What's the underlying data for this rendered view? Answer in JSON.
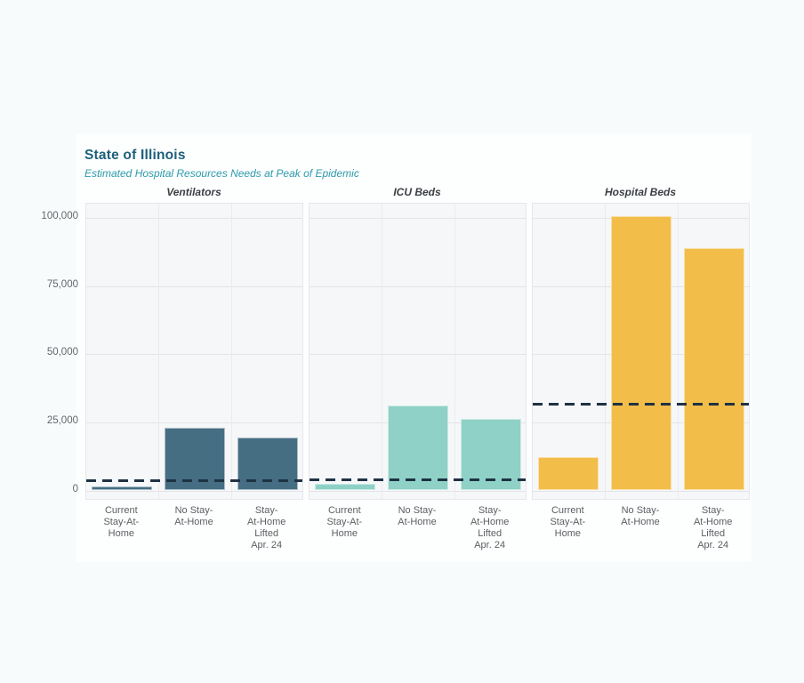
{
  "chart_data": {
    "type": "bar",
    "title": "State of Illinois",
    "subtitle": "Estimated Hospital Resources Needs at Peak of Epidemic",
    "categories": [
      "Current Stay-At-Home",
      "No Stay-At-Home",
      "Stay-At-Home Lifted Apr. 24"
    ],
    "category_label_lines": [
      [
        "Current",
        "Stay-At-",
        "Home"
      ],
      [
        "No Stay-",
        "At-Home"
      ],
      [
        "Stay-",
        "At-Home",
        "Lifted",
        "Apr. 24"
      ]
    ],
    "y_axis": {
      "ticks": [
        0,
        25000,
        50000,
        75000,
        100000
      ],
      "tick_labels": [
        "0",
        "25,000",
        "50,000",
        "75,000",
        "100,000"
      ],
      "range": [
        0,
        109000
      ],
      "gridlines": true
    },
    "panels": [
      {
        "label": "Ventilators",
        "bar_color": "#456e83",
        "values": [
          1500,
          23000,
          19500
        ],
        "capacity_line": 3650
      },
      {
        "label": "ICU Beds",
        "bar_color": "#8fd1c6",
        "values": [
          2400,
          31000,
          26400
        ],
        "capacity_line": 3980
      },
      {
        "label": "Hospital Beds",
        "bar_color": "#f2bd49",
        "values": [
          12200,
          100500,
          89000
        ],
        "capacity_line": 31500
      }
    ],
    "capacity_line_style": {
      "color": "#1f3244",
      "dash": true
    },
    "legend_position": "none"
  },
  "colors": {
    "page_background": "#f7fbfc",
    "card_background": "#fdfefe",
    "panel_background": "#f6f7f9",
    "panel_border": "#e3e8eb",
    "gridline": "#e4e4e8",
    "title": "#1d5f7a",
    "subtitle": "#2d9aab",
    "panel_title": "#3b4045",
    "axis_text": "#63676b",
    "capacity_line": "#1f3244"
  }
}
